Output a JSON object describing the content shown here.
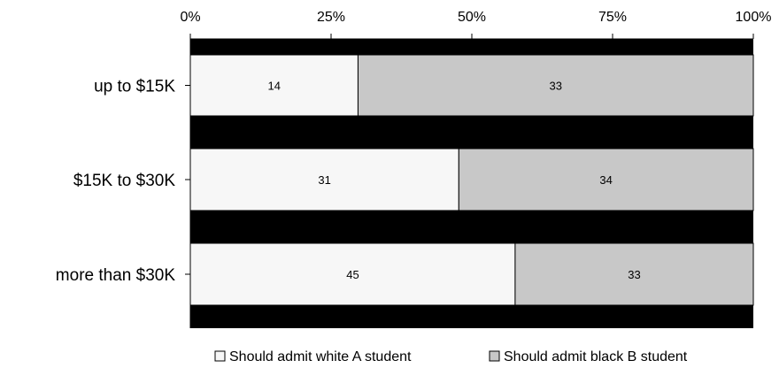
{
  "chart_data": {
    "type": "bar",
    "orientation": "horizontal",
    "stacked": "percent",
    "categories": [
      "up to $15K",
      "$15K to $30K",
      "more than $30K"
    ],
    "series": [
      {
        "name": "Should admit white A student",
        "values": [
          14,
          31,
          45
        ],
        "color": "#f7f7f7"
      },
      {
        "name": "Should admit black B student",
        "values": [
          33,
          34,
          33
        ],
        "color": "#c8c8c8"
      }
    ],
    "x_ticks": [
      "0%",
      "25%",
      "50%",
      "75%",
      "100%"
    ],
    "xlim": [
      0,
      100
    ],
    "x_axis_position": "top",
    "legend_position": "bottom",
    "plot_background": "#000000",
    "grid": false
  }
}
